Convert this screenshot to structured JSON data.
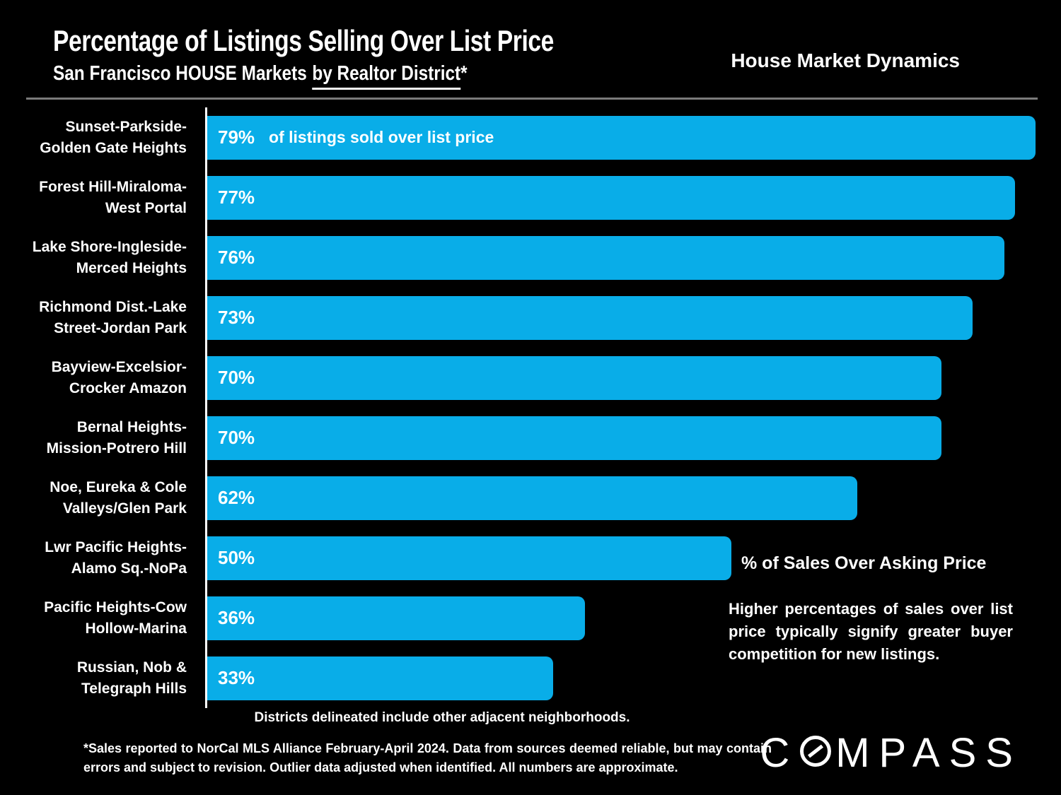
{
  "header": {
    "title": "Percentage of Listings Selling Over List Price",
    "subtitle_prefix": "San Francisco HOUSE Markets",
    "subtitle_underlined": "by Realtor District",
    "subtitle_suffix": "*",
    "brand": "House Market Dynamics"
  },
  "chart_data": {
    "type": "bar",
    "orientation": "horizontal",
    "title": "Percentage of Listings Selling Over List Price",
    "subtitle": "San Francisco HOUSE Markets by Realtor District*",
    "unit": "%",
    "xlim": [
      0,
      81.4
    ],
    "grid": false,
    "legend": false,
    "background_color": "#000000",
    "bar_color": "#09ADE8",
    "value_label_color": "#FFFFFF",
    "first_bar_note": "of listings sold over list price",
    "categories": [
      [
        "Sunset-Parkside-",
        "Golden Gate Heights"
      ],
      [
        "Forest Hill-Miraloma-",
        "West Portal"
      ],
      [
        "Lake Shore-Ingleside-",
        "Merced Heights"
      ],
      [
        "Richmond Dist.-Lake",
        "Street-Jordan Park"
      ],
      [
        "Bayview-Excelsior-",
        "Crocker Amazon"
      ],
      [
        "Bernal Heights-",
        "Mission-Potrero Hill"
      ],
      [
        "Noe, Eureka & Cole",
        "Valleys/Glen Park"
      ],
      [
        "Lwr Pacific Heights-",
        "Alamo Sq.-NoPa"
      ],
      [
        "Pacific Heights-Cow",
        "Hollow-Marina"
      ],
      [
        "Russian, Nob &",
        "Telegraph Hills"
      ]
    ],
    "values": [
      79,
      77,
      76,
      73,
      70,
      70,
      62,
      50,
      36,
      33
    ]
  },
  "annotation": {
    "heading": "% of Sales Over Asking Price",
    "body": "Higher percentages of sales over list price typically signify greater buyer competition for new listings."
  },
  "notes": {
    "chart_note": "Districts delineated include other adjacent neighborhoods.",
    "disclaimer": "*Sales reported to NorCal MLS Alliance February-April 2024. Data from sources deemed reliable, but may contain errors and subject to revision. Outlier data adjusted when identified. All numbers are approximate."
  },
  "footer": {
    "logo_part1": "C",
    "logo_part2": "MPASS"
  }
}
